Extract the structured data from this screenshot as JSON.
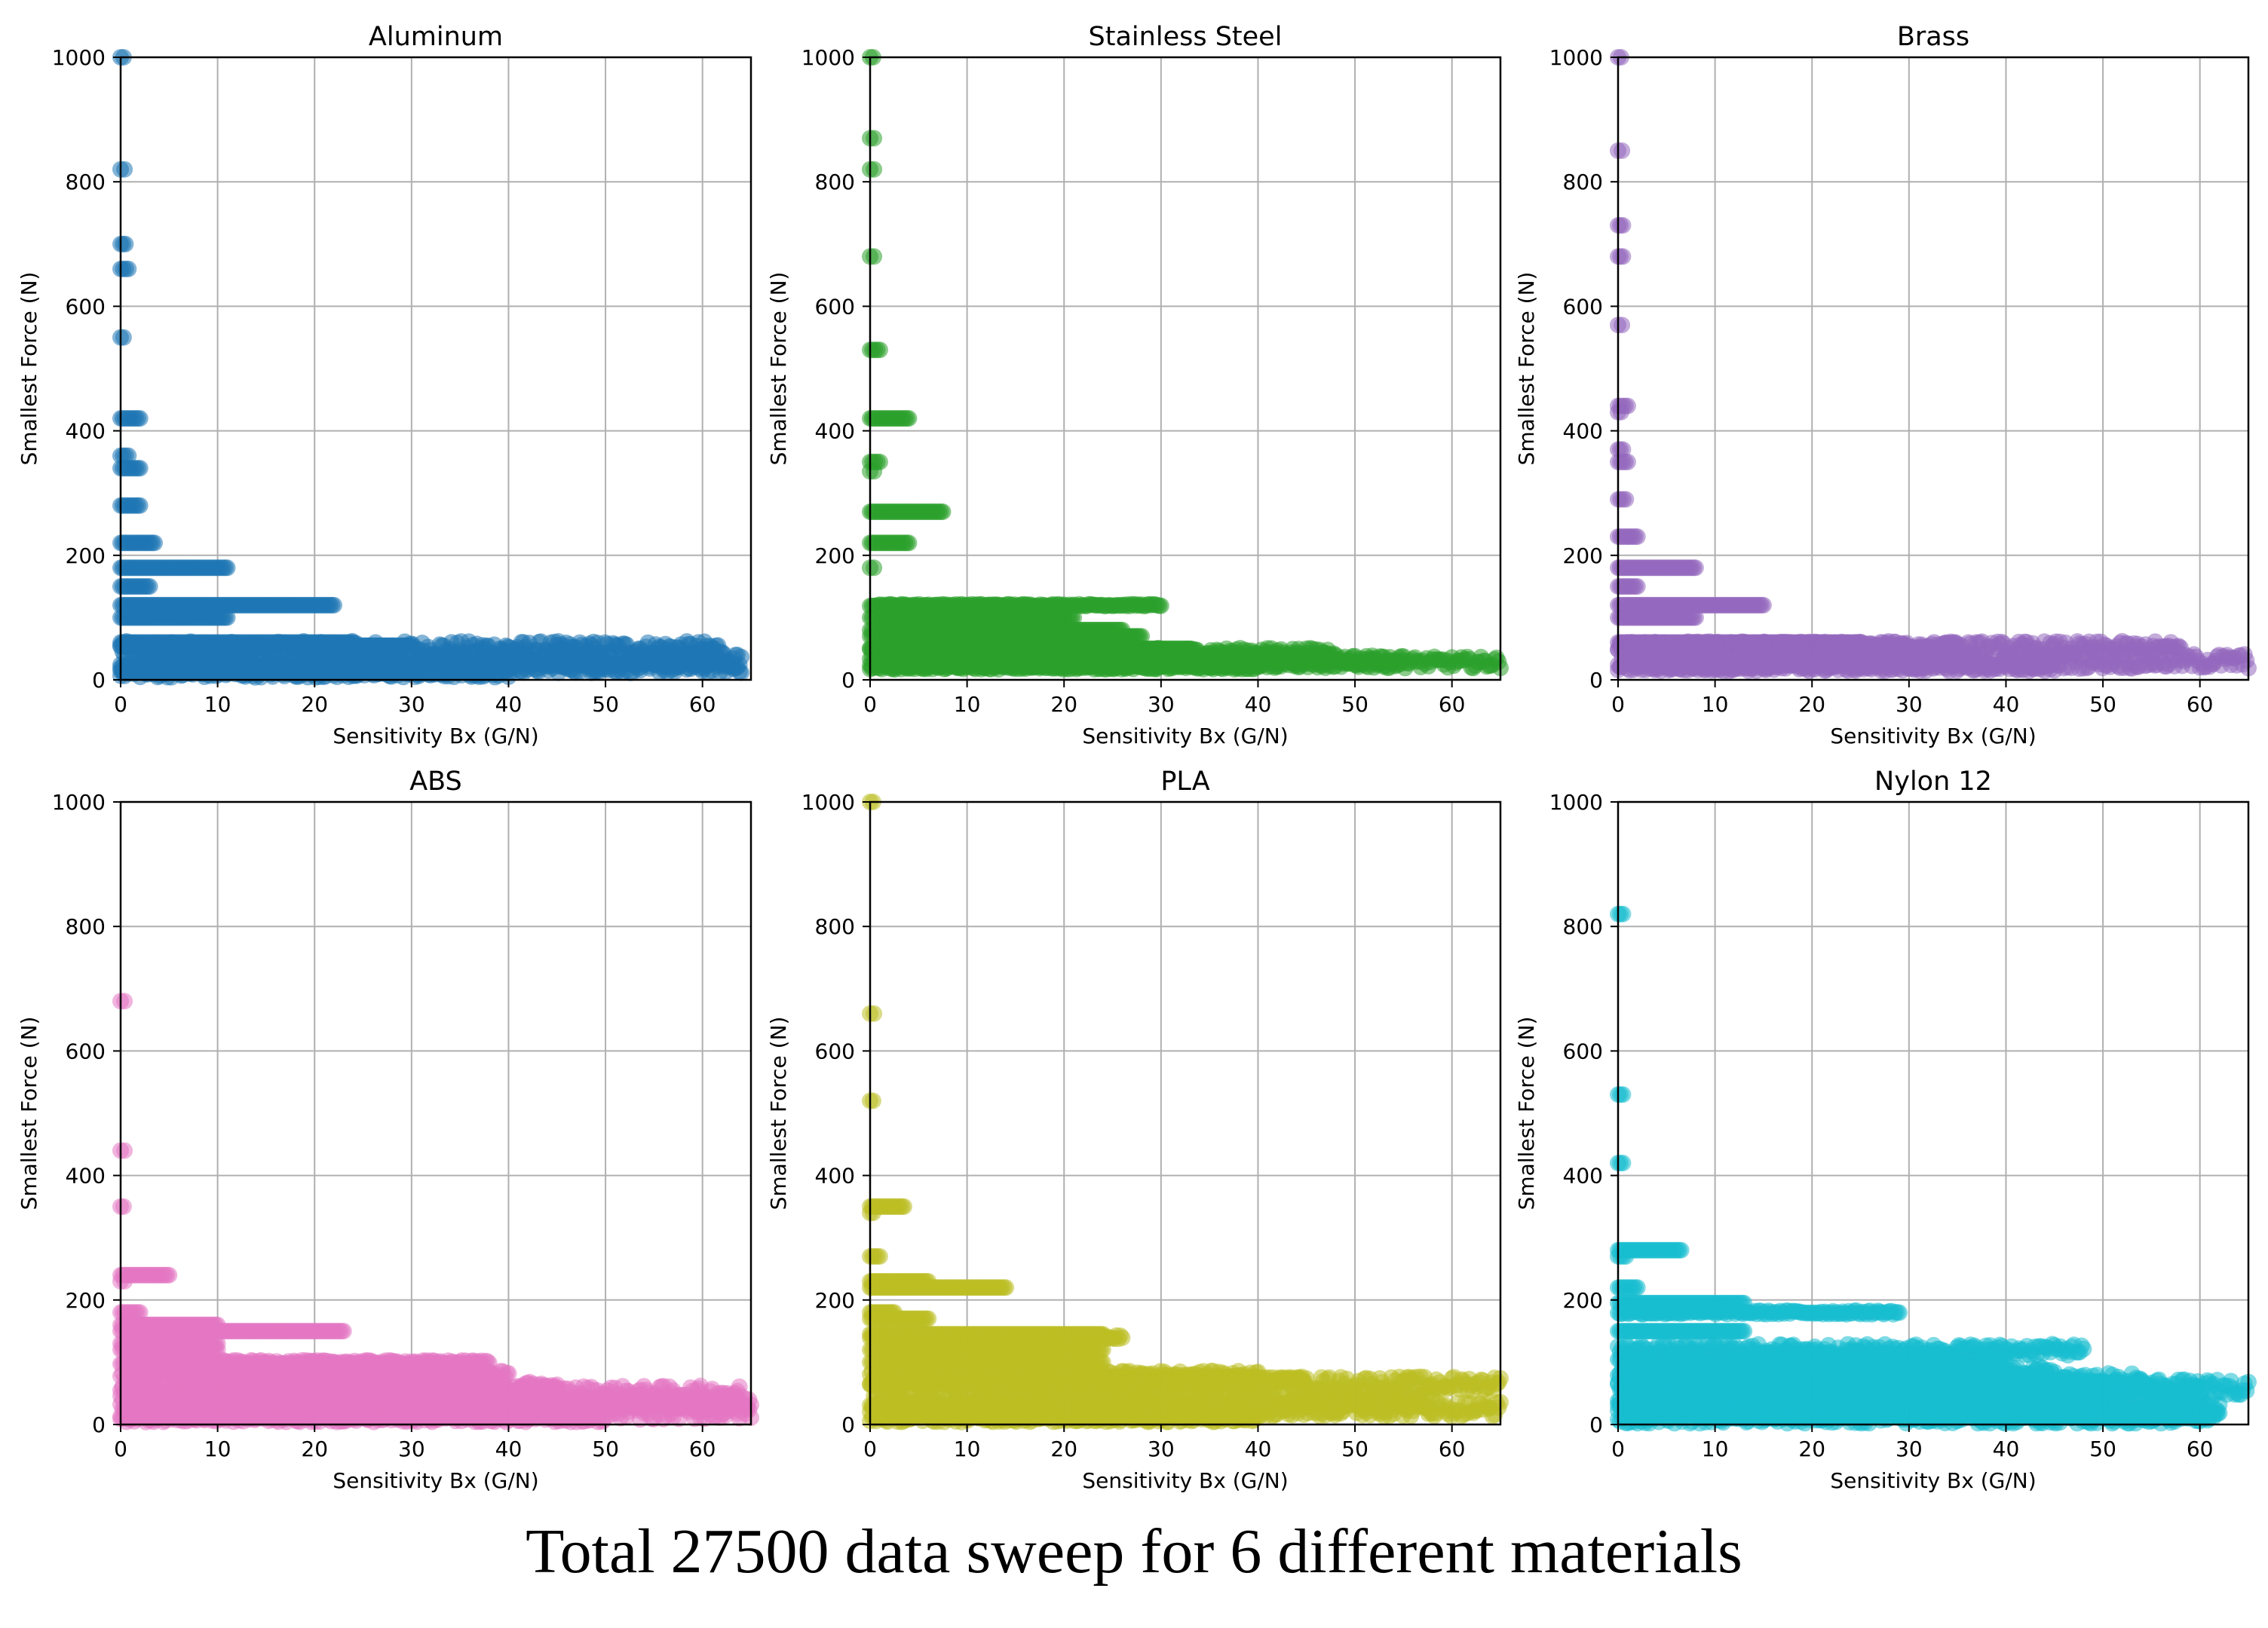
{
  "caption": "Total 27500 data sweep for 6 different materials",
  "chart_data": [
    {
      "type": "scatter",
      "title": "Aluminum",
      "color": "#1f77b4",
      "xlabel": "Sensitivity Bx (G/N)",
      "ylabel": "Smallest Force (N)",
      "xlim": [
        0,
        65
      ],
      "ylim": [
        0,
        1000
      ],
      "xticks": [
        0,
        10,
        20,
        30,
        40,
        50,
        60
      ],
      "yticks": [
        0,
        200,
        400,
        600,
        800,
        1000
      ],
      "grid": true,
      "bands": [
        [
          0.3,
          1000,
          0
        ],
        [
          0.4,
          820,
          0
        ],
        [
          0.5,
          700,
          0
        ],
        [
          0.8,
          660,
          0
        ],
        [
          0.3,
          550,
          0
        ],
        [
          2,
          420,
          0
        ],
        [
          0.8,
          360,
          0
        ],
        [
          2,
          340,
          0
        ],
        [
          2,
          280,
          0
        ],
        [
          3.5,
          220,
          0
        ],
        [
          11,
          180,
          0
        ],
        [
          3,
          150,
          0
        ],
        [
          22,
          120,
          0
        ],
        [
          11,
          100,
          0
        ],
        [
          24,
          60,
          0
        ],
        [
          30,
          55,
          0
        ],
        [
          62,
          50,
          0.4
        ],
        [
          64,
          30,
          0.4
        ],
        [
          64,
          20,
          0.3
        ],
        [
          22,
          15,
          0
        ],
        [
          40,
          10,
          0.2
        ]
      ]
    },
    {
      "type": "scatter",
      "title": "Stainless Steel",
      "color": "#2ca02c",
      "xlabel": "Sensitivity Bx (G/N)",
      "ylabel": "Smallest Force (N)",
      "xlim": [
        0,
        65
      ],
      "ylim": [
        0,
        1000
      ],
      "xticks": [
        0,
        10,
        20,
        30,
        40,
        50,
        60
      ],
      "yticks": [
        0,
        200,
        400,
        600,
        800,
        1000
      ],
      "grid": true,
      "bands": [
        [
          0.3,
          1000,
          0
        ],
        [
          0.4,
          870,
          0
        ],
        [
          0.4,
          820,
          0
        ],
        [
          0.4,
          680,
          0
        ],
        [
          1,
          530,
          0
        ],
        [
          4,
          420,
          0
        ],
        [
          1,
          350,
          0
        ],
        [
          0.4,
          335,
          0
        ],
        [
          7.5,
          270,
          0
        ],
        [
          4,
          220,
          0
        ],
        [
          0.4,
          180,
          0
        ],
        [
          30,
          120,
          0.05
        ],
        [
          21,
          100,
          0
        ],
        [
          26,
          80,
          0
        ],
        [
          28,
          70,
          0
        ],
        [
          33,
          50,
          0
        ],
        [
          48,
          45,
          0.2
        ],
        [
          55,
          30,
          0.3
        ],
        [
          65,
          28,
          0.3
        ],
        [
          40,
          20,
          0.1
        ]
      ]
    },
    {
      "type": "scatter",
      "title": "Brass",
      "color": "#9467bd",
      "xlabel": "Sensitivity Bx (G/N)",
      "ylabel": "Smallest Force (N)",
      "xlim": [
        0,
        65
      ],
      "ylim": [
        0,
        1000
      ],
      "xticks": [
        0,
        10,
        20,
        30,
        40,
        50,
        60
      ],
      "yticks": [
        0,
        200,
        400,
        600,
        800,
        1000
      ],
      "grid": true,
      "bands": [
        [
          0.3,
          1000,
          0
        ],
        [
          0.4,
          850,
          0
        ],
        [
          0.5,
          730,
          0
        ],
        [
          0.5,
          680,
          0
        ],
        [
          0.4,
          570,
          0
        ],
        [
          1,
          440,
          0
        ],
        [
          0.3,
          430,
          0
        ],
        [
          0.5,
          370,
          0
        ],
        [
          1,
          350,
          0
        ],
        [
          0.8,
          290,
          0
        ],
        [
          2,
          230,
          0
        ],
        [
          8,
          180,
          0
        ],
        [
          2,
          150,
          0
        ],
        [
          15,
          120,
          0
        ],
        [
          8,
          100,
          0
        ],
        [
          25,
          60,
          0
        ],
        [
          35,
          55,
          0.2
        ],
        [
          58,
          50,
          0.4
        ],
        [
          65,
          30,
          0.4
        ],
        [
          45,
          20,
          0.2
        ]
      ]
    },
    {
      "type": "scatter",
      "title": "ABS",
      "color": "#e377c2",
      "xlabel": "Sensitivity Bx (G/N)",
      "ylabel": "Smallest Force (N)",
      "xlim": [
        0,
        65
      ],
      "ylim": [
        0,
        1000
      ],
      "xticks": [
        0,
        10,
        20,
        30,
        40,
        50,
        60
      ],
      "yticks": [
        0,
        200,
        400,
        600,
        800,
        1000
      ],
      "grid": true,
      "bands": [
        [
          0.4,
          680,
          0
        ],
        [
          0.4,
          440,
          0
        ],
        [
          0.3,
          350,
          0
        ],
        [
          5,
          240,
          0
        ],
        [
          0.4,
          230,
          0
        ],
        [
          2,
          180,
          0
        ],
        [
          10,
          160,
          0
        ],
        [
          23,
          150,
          0
        ],
        [
          10,
          130,
          0
        ],
        [
          10,
          120,
          0
        ],
        [
          38,
          100,
          0.1
        ],
        [
          40,
          80,
          0.2
        ],
        [
          45,
          60,
          0.3
        ],
        [
          64,
          50,
          0.4
        ],
        [
          65,
          35,
          0.4
        ],
        [
          65,
          20,
          0.4
        ],
        [
          50,
          10,
          0.2
        ]
      ]
    },
    {
      "type": "scatter",
      "title": "PLA",
      "color": "#bcbd22",
      "xlabel": "Sensitivity Bx (G/N)",
      "ylabel": "Smallest Force (N)",
      "xlim": [
        0,
        65
      ],
      "ylim": [
        0,
        1000
      ],
      "xticks": [
        0,
        10,
        20,
        30,
        40,
        50,
        60
      ],
      "yticks": [
        0,
        200,
        400,
        600,
        800,
        1000
      ],
      "grid": true,
      "bands": [
        [
          0.3,
          1000,
          0
        ],
        [
          0.4,
          660,
          0
        ],
        [
          0.3,
          520,
          0
        ],
        [
          3.5,
          350,
          0
        ],
        [
          0.3,
          340,
          0
        ],
        [
          1,
          270,
          0
        ],
        [
          6,
          230,
          0
        ],
        [
          14,
          220,
          0
        ],
        [
          2.5,
          180,
          0
        ],
        [
          6,
          170,
          0
        ],
        [
          24,
          145,
          0
        ],
        [
          26,
          140,
          0.1
        ],
        [
          24,
          120,
          0
        ],
        [
          24,
          100,
          0
        ],
        [
          40,
          80,
          0.2
        ],
        [
          45,
          70,
          0.2
        ],
        [
          65,
          65,
          0.4
        ],
        [
          58,
          40,
          0.4
        ],
        [
          65,
          25,
          0.4
        ],
        [
          40,
          10,
          0.2
        ]
      ]
    },
    {
      "type": "scatter",
      "title": "Nylon 12",
      "color": "#17becf",
      "xlabel": "Sensitivity Bx (G/N)",
      "ylabel": "Smallest Force (N)",
      "xlim": [
        0,
        65
      ],
      "ylim": [
        0,
        1000
      ],
      "xticks": [
        0,
        10,
        20,
        30,
        40,
        50,
        60
      ],
      "yticks": [
        0,
        200,
        400,
        600,
        800,
        1000
      ],
      "grid": true,
      "bands": [
        [
          0.5,
          820,
          0
        ],
        [
          0.5,
          530,
          0
        ],
        [
          0.5,
          420,
          0
        ],
        [
          6.5,
          280,
          0
        ],
        [
          0.8,
          270,
          0
        ],
        [
          2,
          220,
          0
        ],
        [
          13,
          195,
          0
        ],
        [
          29,
          180,
          0.1
        ],
        [
          13,
          150,
          0
        ],
        [
          48,
          120,
          0.3
        ],
        [
          40,
          100,
          0.2
        ],
        [
          45,
          85,
          0.3
        ],
        [
          55,
          70,
          0.4
        ],
        [
          65,
          60,
          0.4
        ],
        [
          60,
          50,
          0.4
        ],
        [
          62,
          30,
          0.4
        ],
        [
          60,
          20,
          0.4
        ],
        [
          62,
          10,
          0.3
        ]
      ]
    }
  ]
}
